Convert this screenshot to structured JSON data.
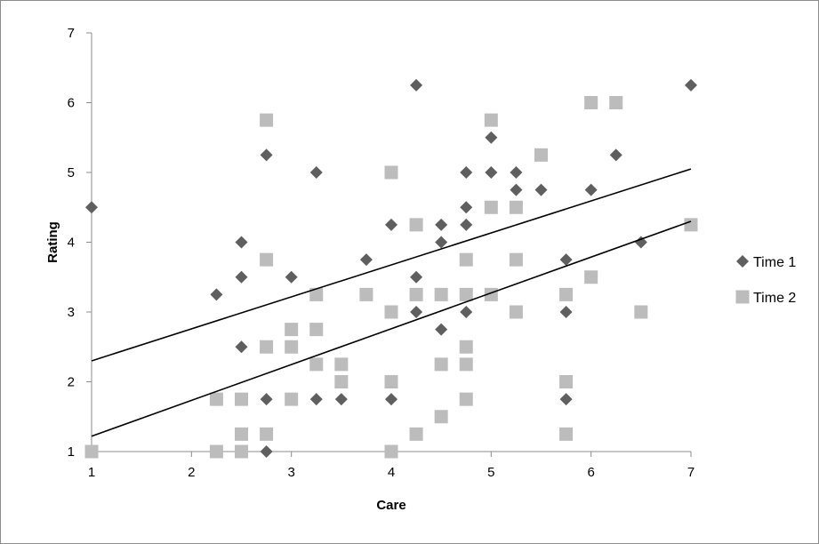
{
  "chart_data": {
    "type": "scatter",
    "title": "",
    "xlabel": "Care",
    "ylabel": "Rating",
    "xlim": [
      1,
      7
    ],
    "ylim": [
      1,
      7
    ],
    "xticks": [
      1,
      2,
      3,
      4,
      5,
      6,
      7
    ],
    "yticks": [
      1,
      2,
      3,
      4,
      5,
      6,
      7
    ],
    "grid": false,
    "legend_position": "right",
    "series": [
      {
        "name": "Time 1",
        "marker": "diamond",
        "color": "#5f5f5f",
        "points": [
          [
            1,
            4.5
          ],
          [
            2.25,
            3.25
          ],
          [
            2.5,
            4
          ],
          [
            2.5,
            3.5
          ],
          [
            2.5,
            2.5
          ],
          [
            2.75,
            5.25
          ],
          [
            2.75,
            1.75
          ],
          [
            2.75,
            1
          ],
          [
            3,
            3.5
          ],
          [
            3.25,
            5
          ],
          [
            3.25,
            1.75
          ],
          [
            3.5,
            1.75
          ],
          [
            3.75,
            3.75
          ],
          [
            4,
            4.25
          ],
          [
            4,
            1.75
          ],
          [
            4.25,
            6.25
          ],
          [
            4.25,
            3.5
          ],
          [
            4.25,
            3
          ],
          [
            4.5,
            4.25
          ],
          [
            4.5,
            4
          ],
          [
            4.5,
            2.75
          ],
          [
            4.75,
            5
          ],
          [
            4.75,
            4.5
          ],
          [
            4.75,
            4.25
          ],
          [
            4.75,
            3
          ],
          [
            5,
            5.5
          ],
          [
            5,
            5
          ],
          [
            5.25,
            5
          ],
          [
            5.25,
            4.75
          ],
          [
            5.5,
            4.75
          ],
          [
            5.75,
            3.75
          ],
          [
            5.75,
            3
          ],
          [
            5.75,
            1.75
          ],
          [
            6,
            4.75
          ],
          [
            6.25,
            5.25
          ],
          [
            6.5,
            4
          ],
          [
            7,
            6.25
          ]
        ],
        "trendline": [
          [
            1,
            2.3
          ],
          [
            7,
            5.05
          ]
        ]
      },
      {
        "name": "Time 2",
        "marker": "square",
        "color": "#bcbcbc",
        "points": [
          [
            1,
            1
          ],
          [
            2.25,
            1.75
          ],
          [
            2.25,
            1
          ],
          [
            2.5,
            1.75
          ],
          [
            2.5,
            1.25
          ],
          [
            2.5,
            1
          ],
          [
            2.75,
            5.75
          ],
          [
            2.75,
            3.75
          ],
          [
            2.75,
            2.5
          ],
          [
            2.75,
            1.25
          ],
          [
            3,
            2.75
          ],
          [
            3,
            2.5
          ],
          [
            3,
            1.75
          ],
          [
            3.25,
            3.25
          ],
          [
            3.25,
            2.75
          ],
          [
            3.25,
            2.25
          ],
          [
            3.5,
            2.25
          ],
          [
            3.5,
            2
          ],
          [
            3.75,
            3.25
          ],
          [
            4,
            5
          ],
          [
            4,
            3
          ],
          [
            4,
            2
          ],
          [
            4,
            1
          ],
          [
            4.25,
            4.25
          ],
          [
            4.25,
            3.25
          ],
          [
            4.25,
            1.25
          ],
          [
            4.5,
            3.25
          ],
          [
            4.5,
            2.25
          ],
          [
            4.5,
            1.5
          ],
          [
            4.75,
            3.75
          ],
          [
            4.75,
            3.25
          ],
          [
            4.75,
            2.5
          ],
          [
            4.75,
            2.25
          ],
          [
            4.75,
            1.75
          ],
          [
            5,
            5.75
          ],
          [
            5,
            4.5
          ],
          [
            5,
            3.25
          ],
          [
            5.25,
            4.5
          ],
          [
            5.25,
            3.75
          ],
          [
            5.25,
            3
          ],
          [
            5.5,
            5.25
          ],
          [
            5.75,
            3.25
          ],
          [
            5.75,
            2
          ],
          [
            5.75,
            1.25
          ],
          [
            6,
            6
          ],
          [
            6,
            3.5
          ],
          [
            6.25,
            6
          ],
          [
            6.5,
            3
          ],
          [
            7,
            4.25
          ]
        ],
        "trendline": [
          [
            1,
            1.22
          ],
          [
            7,
            4.3
          ]
        ]
      }
    ]
  }
}
